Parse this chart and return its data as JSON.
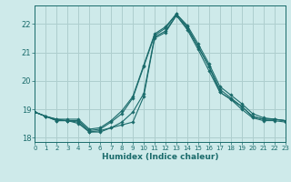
{
  "xlabel": "Humidex (Indice chaleur)",
  "background_color": "#ceeaea",
  "grid_color": "#aecece",
  "line_color": "#1a6b6b",
  "x_values": [
    0,
    1,
    2,
    3,
    4,
    5,
    6,
    7,
    8,
    9,
    10,
    11,
    12,
    13,
    14,
    15,
    16,
    17,
    18,
    19,
    20,
    21,
    22,
    23
  ],
  "series": [
    [
      18.9,
      18.75,
      18.6,
      18.6,
      18.5,
      18.2,
      18.2,
      18.35,
      18.45,
      18.55,
      19.45,
      21.5,
      21.7,
      22.3,
      21.8,
      21.1,
      20.35,
      19.6,
      19.35,
      19.0,
      18.7,
      18.6,
      18.6,
      18.55
    ],
    [
      18.9,
      18.75,
      18.6,
      18.6,
      18.55,
      18.2,
      18.25,
      18.35,
      18.55,
      18.9,
      19.55,
      21.55,
      21.75,
      22.3,
      21.85,
      21.2,
      20.5,
      19.7,
      19.4,
      19.1,
      18.75,
      18.65,
      18.65,
      18.6
    ],
    [
      18.9,
      18.75,
      18.65,
      18.6,
      18.6,
      18.25,
      18.3,
      18.55,
      18.85,
      19.4,
      20.5,
      21.6,
      21.85,
      22.35,
      21.9,
      21.2,
      20.5,
      19.6,
      19.35,
      19.1,
      18.75,
      18.65,
      18.65,
      18.6
    ],
    [
      18.9,
      18.75,
      18.65,
      18.65,
      18.65,
      18.3,
      18.35,
      18.6,
      18.95,
      19.45,
      20.55,
      21.65,
      21.9,
      22.35,
      21.95,
      21.3,
      20.6,
      19.8,
      19.5,
      19.2,
      18.85,
      18.7,
      18.65,
      18.6
    ]
  ],
  "xlim": [
    0,
    23
  ],
  "ylim": [
    17.85,
    22.65
  ],
  "yticks": [
    18,
    19,
    20,
    21,
    22
  ],
  "xticks": [
    0,
    1,
    2,
    3,
    4,
    5,
    6,
    7,
    8,
    9,
    10,
    11,
    12,
    13,
    14,
    15,
    16,
    17,
    18,
    19,
    20,
    21,
    22,
    23
  ]
}
